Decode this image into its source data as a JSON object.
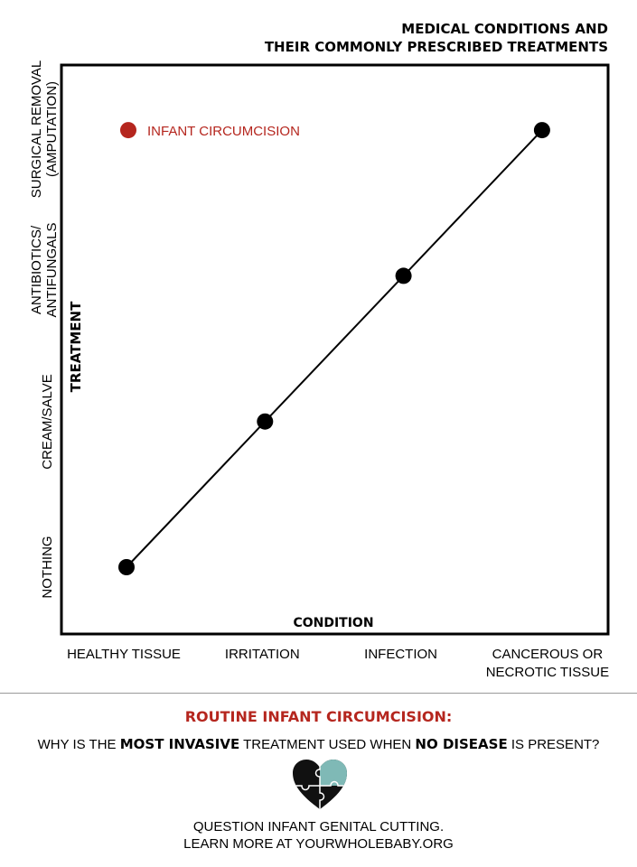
{
  "title_lines": [
    "MEDICAL CONDITIONS AND",
    "THEIR COMMONLY PRESCRIBED TREATMENTS"
  ],
  "chart_data": {
    "type": "line",
    "title": "MEDICAL CONDITIONS AND THEIR COMMONLY PRESCRIBED TREATMENTS",
    "xlabel": "CONDITION",
    "ylabel": "TREATMENT",
    "categories": [
      "HEALTHY TISSUE",
      "IRRITATION",
      "INFECTION",
      "CANCEROUS OR NECROTIC TISSUE"
    ],
    "x_tick_labels": [
      [
        "HEALTHY TISSUE"
      ],
      [
        "IRRITATION"
      ],
      [
        "INFECTION"
      ],
      [
        "CANCEROUS OR",
        "NECROTIC TISSUE"
      ]
    ],
    "y_levels": [
      "NOTHING",
      "CREAM/SALVE",
      "ANTIBIOTICS/ ANTIFUNGALS",
      "SURGICAL REMOVAL (AMPUTATION)"
    ],
    "y_tick_labels": [
      [
        "NOTHING"
      ],
      [
        "CREAM/SALVE"
      ],
      [
        "ANTIBIOTICS/",
        "ANTIFUNGALS"
      ],
      [
        "SURGICAL REMOVAL",
        "(AMPUTATION)"
      ]
    ],
    "series": [
      {
        "values": [
          0,
          1,
          2,
          3
        ],
        "color": "#000000"
      }
    ],
    "highlight": {
      "label": "INFANT CIRCUMCISION",
      "x": 0,
      "y": 3,
      "color": "#b5261e"
    },
    "grid": false
  },
  "bottom": {
    "headline": "ROUTINE INFANT CIRCUMCISION:",
    "question_parts": [
      "WHY IS THE ",
      "MOST INVASIVE",
      " TREATMENT USED WHEN ",
      "NO DISEASE",
      " IS PRESENT?"
    ],
    "logo_icon": "puzzle-heart-icon",
    "footer_lines": [
      "QUESTION INFANT GENITAL CUTTING.",
      "LEARN MORE AT YOURWHOLEBABY.ORG"
    ]
  }
}
